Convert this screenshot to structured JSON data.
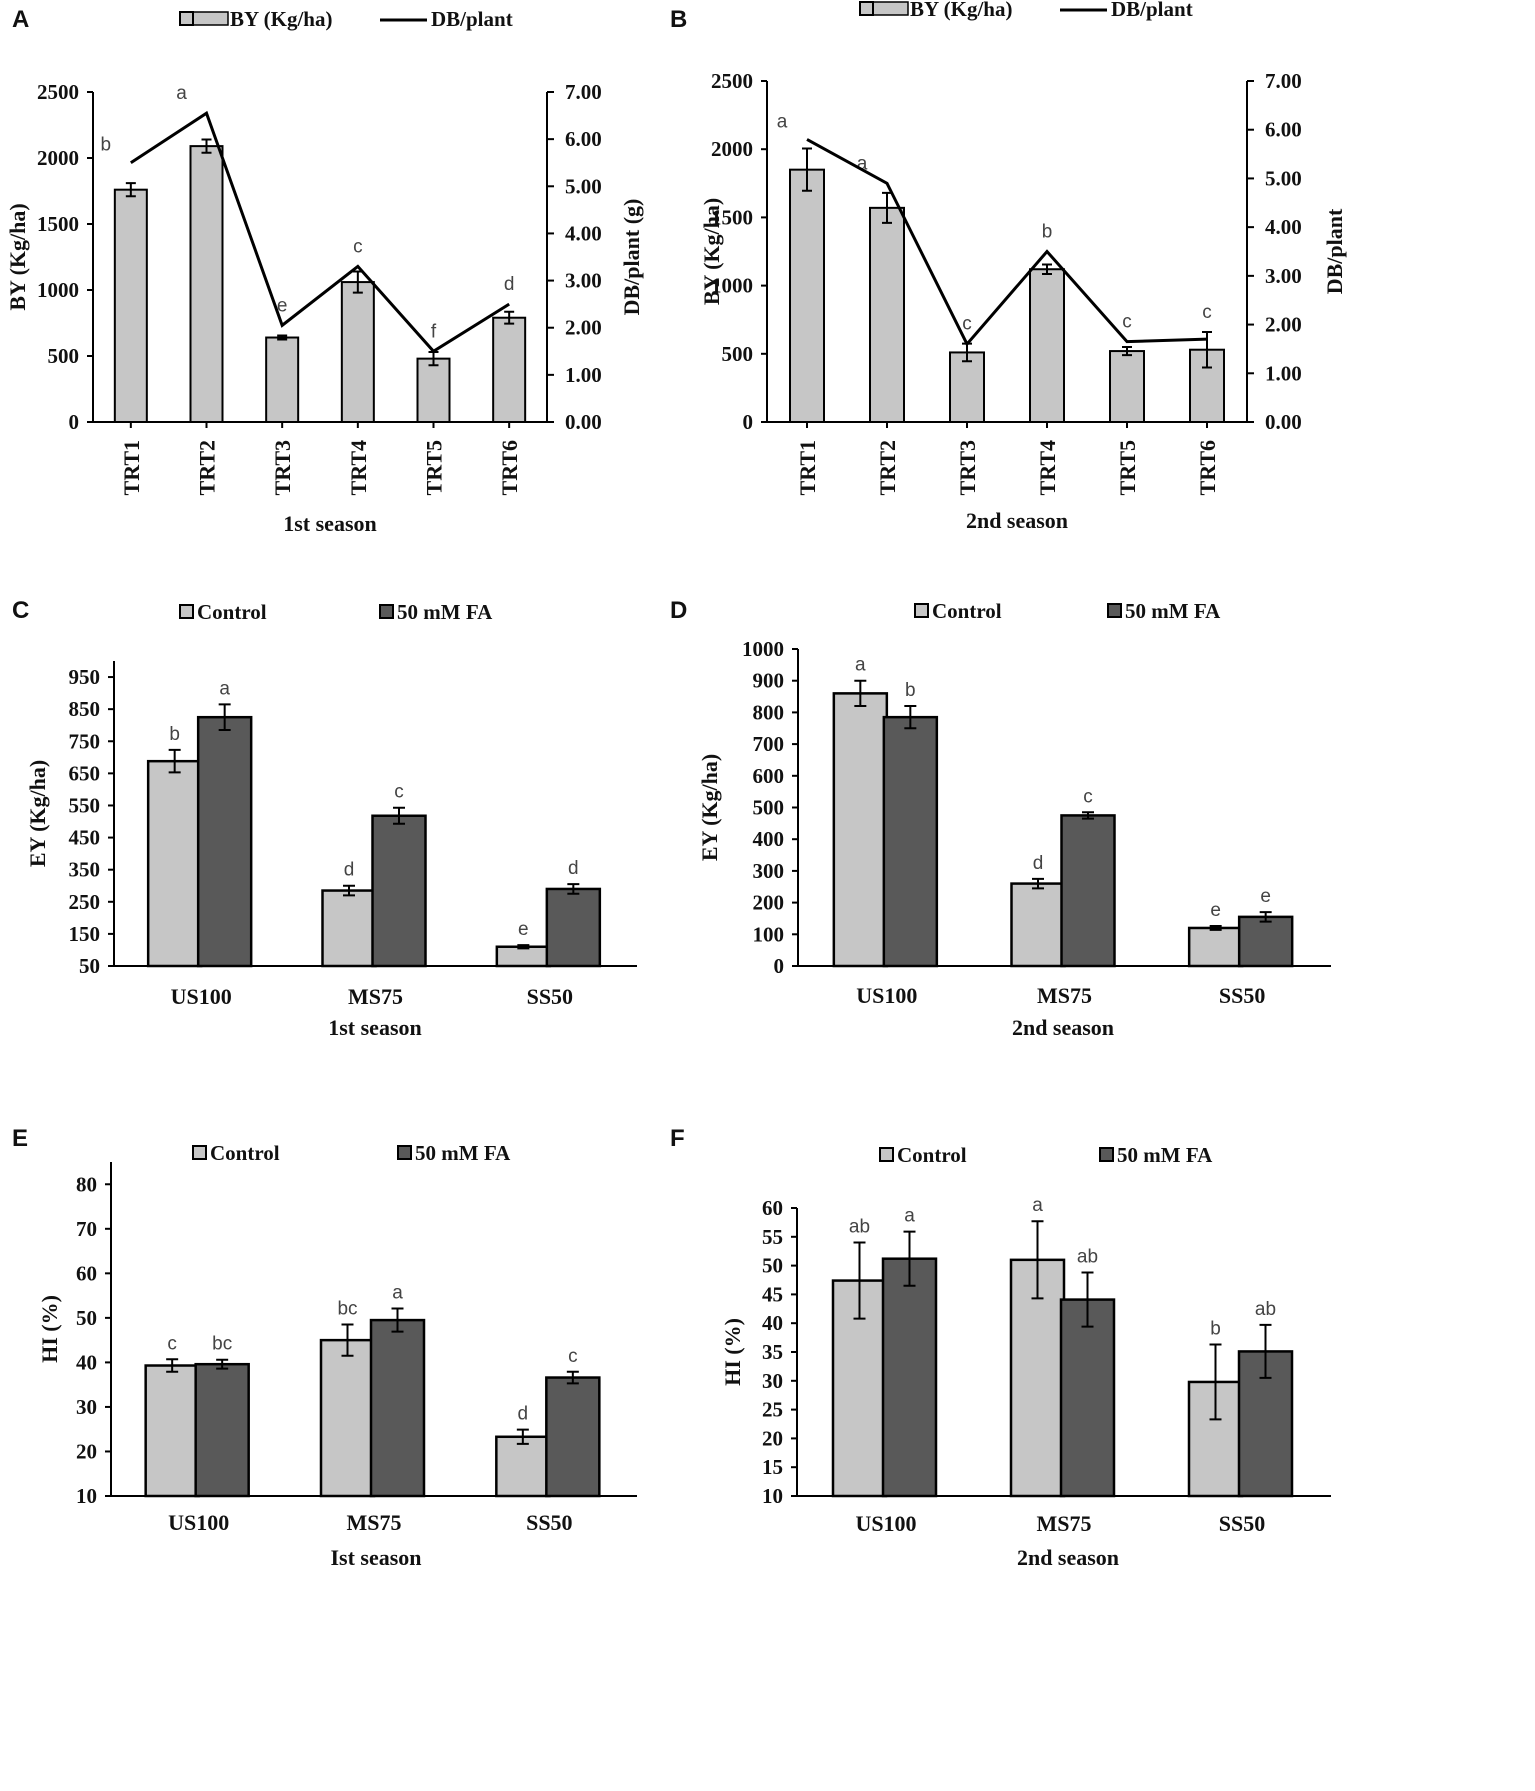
{
  "chart_data": [
    {
      "id": "A",
      "type": "bar+line",
      "panel_label": "A",
      "legend": [
        "BY (Kg/ha)",
        "DB/plant"
      ],
      "categories": [
        "TRT1",
        "TRT2",
        "TRT3",
        "TRT4",
        "TRT5",
        "TRT6"
      ],
      "bar_values": [
        1760,
        2090,
        640,
        1060,
        480,
        790
      ],
      "bar_errors": [
        50,
        50,
        15,
        80,
        50,
        45
      ],
      "line_values": [
        5.5,
        6.55,
        2.05,
        3.3,
        1.5,
        2.5
      ],
      "labels": [
        "b",
        "a",
        "e",
        "c",
        "f",
        "d"
      ],
      "xlabel": "1st season",
      "ylabel": "BY (Kg/ha)",
      "y2label": "DB/plant (g)",
      "ylim": [
        0,
        2500
      ],
      "y2lim": [
        0,
        7
      ],
      "yticks": [
        "0",
        "500",
        "1000",
        "1500",
        "2000",
        "2500"
      ],
      "y2ticks": [
        "0.00",
        "1.00",
        "2.00",
        "3.00",
        "4.00",
        "5.00",
        "6.00",
        "7.00"
      ]
    },
    {
      "id": "B",
      "type": "bar+line",
      "panel_label": "B",
      "legend": [
        "BY (Kg/ha)",
        "DB/plant"
      ],
      "categories": [
        "TRT1",
        "TRT2",
        "TRT3",
        "TRT4",
        "TRT5",
        "TRT6"
      ],
      "bar_values": [
        1850,
        1570,
        510,
        1120,
        520,
        530
      ],
      "bar_errors": [
        155,
        110,
        65,
        35,
        30,
        130
      ],
      "line_values": [
        5.8,
        4.9,
        1.6,
        3.5,
        1.65,
        1.7
      ],
      "labels": [
        "a",
        "a",
        "c",
        "b",
        "c",
        "c"
      ],
      "xlabel": "2nd season",
      "ylabel": "BY (Kg/ha)",
      "y2label": "DB/plant",
      "ylim": [
        0,
        2500
      ],
      "y2lim": [
        0,
        7
      ],
      "yticks": [
        "0",
        "500",
        "1000",
        "1500",
        "2000",
        "2500"
      ],
      "y2ticks": [
        "0.00",
        "1.00",
        "2.00",
        "3.00",
        "4.00",
        "5.00",
        "6.00",
        "7.00"
      ]
    },
    {
      "id": "C",
      "type": "bar",
      "panel_label": "C",
      "legend": [
        "Control",
        "50 mM FA"
      ],
      "categories": [
        "US100",
        "MS75",
        "SS50"
      ],
      "series": [
        {
          "name": "Control",
          "values": [
            688,
            285,
            110
          ],
          "errors": [
            35,
            15,
            5
          ],
          "labels": [
            "b",
            "d",
            "e"
          ]
        },
        {
          "name": "50 mM FA",
          "values": [
            825,
            518,
            290
          ],
          "errors": [
            40,
            25,
            15
          ],
          "labels": [
            "a",
            "c",
            "d"
          ]
        }
      ],
      "xlabel": "1st season",
      "ylabel": "EY (Kg/ha)",
      "ylim": [
        50,
        1000
      ],
      "yticks": [
        "50",
        "150",
        "250",
        "350",
        "450",
        "550",
        "650",
        "750",
        "850",
        "950"
      ]
    },
    {
      "id": "D",
      "type": "bar",
      "panel_label": "D",
      "legend": [
        "Control",
        "50 mM FA"
      ],
      "categories": [
        "US100",
        "MS75",
        "SS50"
      ],
      "series": [
        {
          "name": "Control",
          "values": [
            860,
            260,
            120
          ],
          "errors": [
            40,
            15,
            6
          ],
          "labels": [
            "a",
            "d",
            "e"
          ]
        },
        {
          "name": "50 mM FA",
          "values": [
            785,
            475,
            155
          ],
          "errors": [
            35,
            10,
            15
          ],
          "labels": [
            "b",
            "c",
            "e"
          ]
        }
      ],
      "xlabel": "2nd season",
      "ylabel": "EY (Kg/ha)",
      "ylim": [
        0,
        1000
      ],
      "yticks": [
        "0",
        "100",
        "200",
        "300",
        "400",
        "500",
        "600",
        "700",
        "800",
        "900",
        "1000"
      ]
    },
    {
      "id": "E",
      "type": "bar",
      "panel_label": "E",
      "legend": [
        "Control",
        "50 mM FA"
      ],
      "categories": [
        "US100",
        "MS75",
        "SS50"
      ],
      "series": [
        {
          "name": "Control",
          "values": [
            39.3,
            45,
            23.3
          ],
          "errors": [
            1.4,
            3.5,
            1.6
          ],
          "labels": [
            "c",
            "bc",
            "d"
          ]
        },
        {
          "name": "50 mM FA",
          "values": [
            39.6,
            49.5,
            36.6
          ],
          "errors": [
            1.0,
            2.6,
            1.3
          ],
          "labels": [
            "bc",
            "a",
            "c"
          ]
        }
      ],
      "xlabel": "Ist season",
      "ylabel": "HI (%)",
      "ylim": [
        10,
        85
      ],
      "yticks": [
        "10",
        "20",
        "30",
        "40",
        "50",
        "60",
        "70",
        "80"
      ]
    },
    {
      "id": "F",
      "type": "bar",
      "panel_label": "F",
      "legend": [
        "Control",
        "50 mM FA"
      ],
      "categories": [
        "US100",
        "MS75",
        "SS50"
      ],
      "series": [
        {
          "name": "Control",
          "values": [
            47.4,
            51,
            29.8
          ],
          "errors": [
            6.6,
            6.7,
            6.5
          ],
          "labels": [
            "ab",
            "a",
            "b"
          ]
        },
        {
          "name": "50 mM FA",
          "values": [
            51.2,
            44.1,
            35.1
          ],
          "errors": [
            4.7,
            4.7,
            4.6
          ],
          "labels": [
            "a",
            "ab",
            "ab"
          ]
        }
      ],
      "xlabel": "2nd season",
      "ylabel": "HI (%)",
      "ylim": [
        10,
        60
      ],
      "yticks": [
        "10",
        "15",
        "20",
        "25",
        "30",
        "35",
        "40",
        "45",
        "50",
        "55",
        "60"
      ]
    }
  ],
  "colors": {
    "bar_single": "#c6c6c6",
    "control": "#c6c6c6",
    "fa": "#595959",
    "line": "#000000",
    "axis": "#000000"
  }
}
